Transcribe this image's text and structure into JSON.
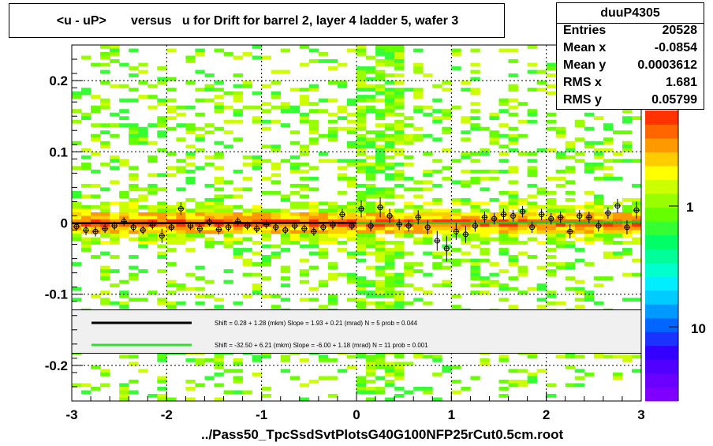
{
  "title": "<u - uP>       versus   u for Drift for barrel 2, layer 4 ladder 5, wafer 3",
  "stats": {
    "name": "duuP4305",
    "rows": [
      {
        "k": "Entries",
        "v": "20528"
      },
      {
        "k": "Mean x",
        "v": "-0.0854"
      },
      {
        "k": "Mean y",
        "v": "0.0003612"
      },
      {
        "k": "RMS x",
        "v": "1.681"
      },
      {
        "k": "RMS y",
        "v": "0.05799"
      }
    ]
  },
  "footer": "../Pass50_TpcSsdSvtPlotsG40G100NFP25rCut0.5cm.root",
  "chart_data": {
    "type": "heatmap",
    "xlim": [
      -3,
      3
    ],
    "ylim": [
      -0.25,
      0.25
    ],
    "x_ticks": [
      "-3",
      "-2",
      "-1",
      "0",
      "1",
      "2",
      "3"
    ],
    "y_ticks": [
      "-0.2",
      "-0.1",
      "0",
      "0.1",
      "0.2"
    ],
    "grid": true,
    "colorbar_labels": [
      "1",
      "10"
    ],
    "palette": [
      "#7f00ff",
      "#6a00ff",
      "#5000ff",
      "#3300ff",
      "#1a33ff",
      "#0066ff",
      "#0099ff",
      "#00ccff",
      "#00eeff",
      "#00ffcc",
      "#00ff99",
      "#00ff66",
      "#33ff33",
      "#66ff00",
      "#99ff00",
      "#ccff00",
      "#ffff00",
      "#ffcc00",
      "#ff9900",
      "#ff6600",
      "#ff3300"
    ],
    "profile_label": "",
    "legend": [
      {
        "name": "Shift =     0.28 + 1.28 (mkm) Slope =     1.93 + 0.21 (mrad)  N = 5 prob = 0.044",
        "color": "#000000"
      },
      {
        "name": "Shift =   -32.50 + 6.21 (mkm) Slope =    -6.00 + 1.18 (mrad)  N = 11 prob = 0.001",
        "color": "#33dd33"
      }
    ],
    "fits": [
      {
        "color": "#000000",
        "x": [
          -3,
          0
        ],
        "y": [
          -0.0003,
          0.0003
        ]
      },
      {
        "color": "#22cc22",
        "x": [
          0,
          3
        ],
        "y": [
          -0.0002,
          0.0012
        ]
      }
    ],
    "profile": {
      "x": [
        -2.95,
        -2.85,
        -2.75,
        -2.65,
        -2.55,
        -2.45,
        -2.35,
        -2.25,
        -2.15,
        -2.05,
        -1.95,
        -1.85,
        -1.75,
        -1.65,
        -1.55,
        -1.45,
        -1.35,
        -1.25,
        -1.15,
        -1.05,
        -0.95,
        -0.85,
        -0.75,
        -0.65,
        -0.55,
        -0.45,
        -0.35,
        -0.25,
        -0.15,
        -0.05,
        0.05,
        0.15,
        0.25,
        0.35,
        0.45,
        0.55,
        0.65,
        0.75,
        0.85,
        0.95,
        1.05,
        1.15,
        1.25,
        1.35,
        1.45,
        1.55,
        1.65,
        1.75,
        1.85,
        1.95,
        2.05,
        2.15,
        2.25,
        2.35,
        2.45,
        2.55,
        2.65,
        2.75,
        2.85,
        2.95
      ],
      "y": [
        -0.005,
        -0.01,
        -0.012,
        -0.008,
        -0.004,
        0.002,
        -0.006,
        -0.01,
        -0.003,
        -0.018,
        -0.006,
        0.02,
        -0.004,
        -0.008,
        0.001,
        -0.009,
        -0.006,
        0.002,
        -0.004,
        -0.008,
        -0.002,
        -0.006,
        -0.01,
        -0.004,
        -0.008,
        -0.012,
        -0.006,
        -0.003,
        0.012,
        -0.004,
        0.02,
        -0.004,
        0.022,
        0.01,
        -0.002,
        -0.004,
        0.008,
        -0.006,
        -0.025,
        -0.036,
        -0.012,
        -0.016,
        -0.004,
        0.008,
        0.006,
        0.012,
        0.01,
        0.016,
        -0.006,
        0.012,
        0.006,
        0.008,
        -0.012,
        0.01,
        0.008,
        -0.004,
        0.014,
        0.024,
        -0.006,
        0.018
      ],
      "err": [
        0.006,
        0.007,
        0.007,
        0.006,
        0.006,
        0.006,
        0.006,
        0.006,
        0.006,
        0.01,
        0.006,
        0.009,
        0.006,
        0.006,
        0.006,
        0.007,
        0.006,
        0.006,
        0.006,
        0.006,
        0.006,
        0.006,
        0.006,
        0.006,
        0.006,
        0.006,
        0.006,
        0.006,
        0.008,
        0.006,
        0.012,
        0.008,
        0.014,
        0.01,
        0.008,
        0.008,
        0.01,
        0.01,
        0.014,
        0.018,
        0.012,
        0.012,
        0.008,
        0.008,
        0.008,
        0.008,
        0.008,
        0.008,
        0.008,
        0.008,
        0.008,
        0.008,
        0.01,
        0.008,
        0.008,
        0.008,
        0.008,
        0.01,
        0.01,
        0.012
      ]
    }
  }
}
